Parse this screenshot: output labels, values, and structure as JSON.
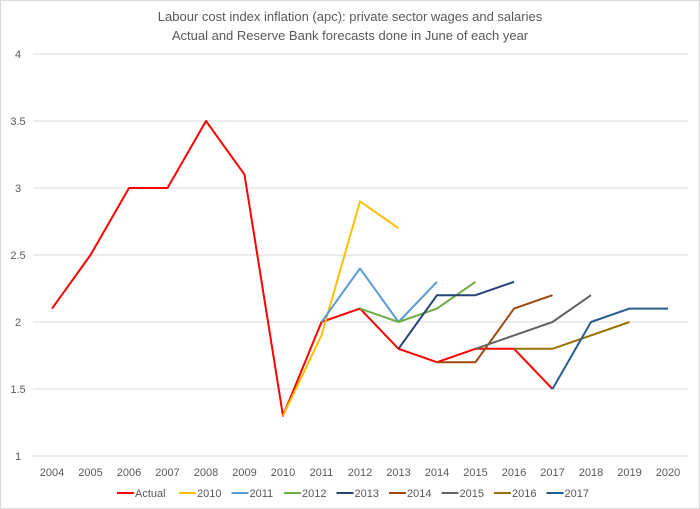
{
  "chart_data": {
    "type": "line",
    "title": "Labour cost index inflation (apc): private sector wages and salaries",
    "subtitle": "Actual and Reserve Bank forecasts done in June of each year",
    "xlabel": "",
    "ylabel": "",
    "x": [
      2004,
      2005,
      2006,
      2007,
      2008,
      2009,
      2010,
      2011,
      2012,
      2013,
      2014,
      2015,
      2016,
      2017,
      2018,
      2019,
      2020
    ],
    "xlim": [
      2004,
      2020
    ],
    "ylim": [
      1,
      4
    ],
    "yticks": [
      "1",
      "1.5",
      "2",
      "2.5",
      "3",
      "3.5",
      "4"
    ],
    "grid": true,
    "legend": "bottom",
    "series": [
      {
        "name": "Actual",
        "color": "#FF0000",
        "points": [
          [
            2004,
            2.1
          ],
          [
            2005,
            2.5
          ],
          [
            2006,
            3.0
          ],
          [
            2007,
            3.0
          ],
          [
            2008,
            3.5
          ],
          [
            2009,
            3.1
          ],
          [
            2010,
            1.3
          ],
          [
            2011,
            2.0
          ],
          [
            2012,
            2.1
          ],
          [
            2013,
            1.8
          ],
          [
            2014,
            1.7
          ],
          [
            2015,
            1.8
          ],
          [
            2016,
            1.8
          ],
          [
            2017,
            1.5
          ]
        ]
      },
      {
        "name": "2010",
        "color": "#FFC000",
        "points": [
          [
            2010,
            1.3
          ],
          [
            2011,
            1.9
          ],
          [
            2012,
            2.9
          ],
          [
            2013,
            2.7
          ]
        ]
      },
      {
        "name": "2011",
        "color": "#5B9BD5",
        "points": [
          [
            2011,
            2.0
          ],
          [
            2012,
            2.4
          ],
          [
            2013,
            2.0
          ],
          [
            2014,
            2.3
          ]
        ]
      },
      {
        "name": "2012",
        "color": "#70AD47",
        "points": [
          [
            2012,
            2.1
          ],
          [
            2013,
            2.0
          ],
          [
            2014,
            2.1
          ],
          [
            2015,
            2.3
          ]
        ]
      },
      {
        "name": "2013",
        "color": "#264478",
        "points": [
          [
            2013,
            1.8
          ],
          [
            2014,
            2.2
          ],
          [
            2015,
            2.2
          ],
          [
            2016,
            2.3
          ]
        ]
      },
      {
        "name": "2014",
        "color": "#9E480E",
        "points": [
          [
            2014,
            1.7
          ],
          [
            2015,
            1.7
          ],
          [
            2016,
            2.1
          ],
          [
            2017,
            2.2
          ]
        ]
      },
      {
        "name": "2015",
        "color": "#636363",
        "points": [
          [
            2015,
            1.8
          ],
          [
            2016,
            1.9
          ],
          [
            2017,
            2.0
          ],
          [
            2018,
            2.2
          ]
        ]
      },
      {
        "name": "2016",
        "color": "#997300",
        "points": [
          [
            2016,
            1.8
          ],
          [
            2017,
            1.8
          ],
          [
            2018,
            1.9
          ],
          [
            2019,
            2.0
          ]
        ]
      },
      {
        "name": "2017",
        "color": "#255E91",
        "points": [
          [
            2017,
            1.5
          ],
          [
            2018,
            2.0
          ],
          [
            2019,
            2.1
          ],
          [
            2020,
            2.1
          ]
        ]
      }
    ]
  }
}
